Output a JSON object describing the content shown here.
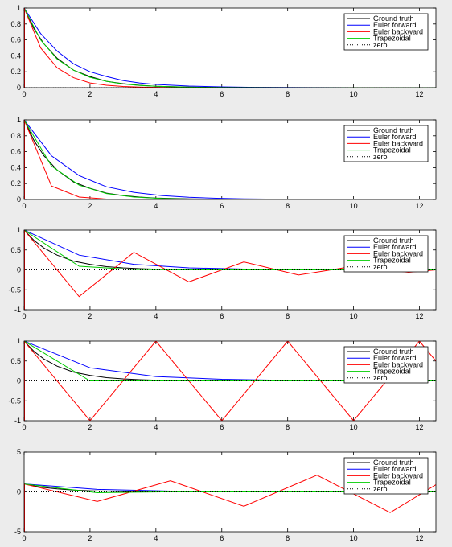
{
  "legend_entries": [
    "Ground truth",
    "Euler forward",
    "Euler backward",
    "Trapezoidal",
    "zero"
  ],
  "colors": {
    "ground_truth": "#000000",
    "euler_forward": "#0000ff",
    "euler_backward": "#ff0000",
    "trapezoidal": "#00cc00",
    "zero": "#000000"
  },
  "chart_data": [
    {
      "type": "line",
      "xlim": [
        0,
        12.5
      ],
      "ylim": [
        0,
        1
      ],
      "xticks": [
        0,
        2,
        4,
        6,
        8,
        10,
        12
      ],
      "yticks": [
        0,
        0.2,
        0.4,
        0.6,
        0.8,
        1
      ],
      "ytick_labels": [
        "0",
        "0.2",
        "0.4",
        "0.6",
        "0.8",
        "1"
      ],
      "legend_position": "top-right",
      "series": [
        {
          "name": "Ground truth",
          "color": "#000000",
          "x": [
            0,
            0.3,
            0.6,
            1,
            1.5,
            2,
            2.5,
            3,
            3.5,
            4,
            5,
            6,
            7,
            8,
            10,
            12.5
          ],
          "y": [
            1,
            0.74,
            0.55,
            0.37,
            0.22,
            0.14,
            0.08,
            0.05,
            0.03,
            0.018,
            0.007,
            0.002,
            0.001,
            0,
            0,
            0
          ]
        },
        {
          "name": "Euler forward",
          "color": "#0000ff",
          "x": [
            0,
            0.5,
            1,
            1.5,
            2,
            2.5,
            3,
            3.5,
            4,
            4.5,
            5,
            6,
            7,
            8,
            10,
            12.5
          ],
          "y": [
            1,
            0.68,
            0.46,
            0.3,
            0.2,
            0.14,
            0.09,
            0.06,
            0.04,
            0.03,
            0.02,
            0.01,
            0.004,
            0.002,
            0,
            0
          ]
        },
        {
          "name": "Euler backward",
          "color": "#ff0000",
          "x": [
            0,
            0.5,
            1,
            1.5,
            2,
            2.5,
            3,
            3.5,
            4,
            5,
            6,
            8,
            10,
            12.5
          ],
          "y": [
            1,
            0.5,
            0.25,
            0.125,
            0.06,
            0.03,
            0.015,
            0.008,
            0.004,
            0.001,
            0,
            0,
            0,
            0
          ]
        },
        {
          "name": "Trapezoidal",
          "color": "#00cc00",
          "x": [
            0,
            0.5,
            1,
            1.5,
            2,
            2.5,
            3,
            3.5,
            4,
            5,
            6,
            8,
            10,
            12.5
          ],
          "y": [
            1,
            0.6,
            0.36,
            0.22,
            0.13,
            0.08,
            0.046,
            0.028,
            0.017,
            0.006,
            0.002,
            0,
            0,
            0
          ]
        },
        {
          "name": "zero",
          "color": "#000000",
          "x": [
            0,
            12.5
          ],
          "y": [
            0,
            0
          ],
          "dotted": true
        }
      ]
    },
    {
      "type": "line",
      "xlim": [
        0,
        12.5
      ],
      "ylim": [
        0,
        1
      ],
      "xticks": [
        0,
        2,
        4,
        6,
        8,
        10,
        12
      ],
      "yticks": [
        0,
        0.2,
        0.4,
        0.6,
        0.8,
        1
      ],
      "ytick_labels": [
        "0",
        "0.2",
        "0.4",
        "0.6",
        "0.8",
        "1"
      ],
      "legend_position": "top-right",
      "series": [
        {
          "name": "Ground truth",
          "color": "#000000",
          "x": [
            0,
            0.3,
            0.6,
            1,
            1.5,
            2,
            2.5,
            3,
            3.5,
            4,
            5,
            6,
            7,
            8,
            10,
            12.5
          ],
          "y": [
            1,
            0.74,
            0.55,
            0.37,
            0.22,
            0.14,
            0.08,
            0.05,
            0.03,
            0.018,
            0.007,
            0.002,
            0.001,
            0,
            0,
            0
          ]
        },
        {
          "name": "Euler forward",
          "color": "#0000ff",
          "x": [
            0,
            0.83,
            1.67,
            2.5,
            3.33,
            4.17,
            5,
            5.83,
            6.67,
            8,
            10,
            12.5
          ],
          "y": [
            1,
            0.55,
            0.3,
            0.16,
            0.09,
            0.05,
            0.027,
            0.015,
            0.008,
            0.003,
            0,
            0
          ]
        },
        {
          "name": "Euler backward",
          "color": "#ff0000",
          "x": [
            0,
            0.83,
            1.67,
            2.5,
            3.33,
            4.17,
            5,
            6,
            8,
            10,
            12.5
          ],
          "y": [
            1,
            0.17,
            0.03,
            0.005,
            0,
            0,
            0,
            0,
            0,
            0,
            0
          ]
        },
        {
          "name": "Trapezoidal",
          "color": "#00cc00",
          "x": [
            0,
            0.83,
            1.67,
            2.5,
            3.33,
            4.17,
            5,
            5.83,
            6.67,
            8,
            10,
            12.5
          ],
          "y": [
            1,
            0.42,
            0.18,
            0.075,
            0.03,
            0.013,
            0.005,
            0.002,
            0.001,
            0,
            0,
            0
          ]
        },
        {
          "name": "zero",
          "color": "#000000",
          "x": [
            0,
            12.5
          ],
          "y": [
            0,
            0
          ],
          "dotted": true
        }
      ]
    },
    {
      "type": "line",
      "xlim": [
        0,
        12.5
      ],
      "ylim": [
        -1,
        1
      ],
      "xticks": [
        0,
        2,
        4,
        6,
        8,
        10,
        12
      ],
      "yticks": [
        -1,
        -0.5,
        0,
        0.5,
        1
      ],
      "ytick_labels": [
        "-1",
        "-0.5",
        "0",
        "0.5",
        "1"
      ],
      "legend_position": "top-right",
      "series": [
        {
          "name": "Ground truth",
          "color": "#000000",
          "x": [
            0,
            0.3,
            0.6,
            1,
            1.5,
            2,
            2.5,
            3,
            3.5,
            4,
            5,
            6,
            7,
            8,
            10,
            12.5
          ],
          "y": [
            1,
            0.74,
            0.55,
            0.37,
            0.22,
            0.14,
            0.08,
            0.05,
            0.03,
            0.018,
            0.007,
            0.002,
            0.001,
            0,
            0,
            0
          ]
        },
        {
          "name": "Euler forward",
          "color": "#0000ff",
          "x": [
            0,
            1.67,
            3.33,
            5,
            6.67,
            8.33,
            10,
            11.67,
            12.5
          ],
          "y": [
            1,
            0.37,
            0.14,
            0.05,
            0.02,
            0.007,
            0.003,
            0.001,
            0
          ]
        },
        {
          "name": "Euler backward",
          "color": "#ff0000",
          "x": [
            0,
            1.67,
            3.33,
            5,
            6.67,
            8.33,
            10,
            11.67,
            12.5
          ],
          "y": [
            1,
            -0.67,
            0.44,
            -0.3,
            0.2,
            -0.13,
            0.09,
            -0.06,
            0
          ]
        },
        {
          "name": "Trapezoidal",
          "color": "#00cc00",
          "x": [
            0,
            1.67,
            3.33,
            5,
            6.67,
            8.33,
            10,
            11.67,
            12.5
          ],
          "y": [
            1,
            0.09,
            0.008,
            0.001,
            0,
            0,
            0,
            0,
            0
          ]
        },
        {
          "name": "zero",
          "color": "#000000",
          "x": [
            0,
            12.5
          ],
          "y": [
            0,
            0
          ],
          "dotted": true
        }
      ]
    },
    {
      "type": "line",
      "xlim": [
        0,
        12.5
      ],
      "ylim": [
        -1,
        1
      ],
      "xticks": [
        0,
        2,
        4,
        6,
        8,
        10,
        12
      ],
      "yticks": [
        -1,
        -0.5,
        0,
        0.5,
        1
      ],
      "ytick_labels": [
        "-1",
        "-0.5",
        "0",
        "0.5",
        "1"
      ],
      "legend_position": "top-right",
      "series": [
        {
          "name": "Ground truth",
          "color": "#000000",
          "x": [
            0,
            0.3,
            0.6,
            1,
            1.5,
            2,
            2.5,
            3,
            3.5,
            4,
            5,
            6,
            7,
            8,
            10,
            12.5
          ],
          "y": [
            1,
            0.74,
            0.55,
            0.37,
            0.22,
            0.14,
            0.08,
            0.05,
            0.03,
            0.018,
            0.007,
            0.002,
            0.001,
            0,
            0,
            0
          ]
        },
        {
          "name": "Euler forward",
          "color": "#0000ff",
          "x": [
            0,
            2,
            4,
            6,
            8,
            10,
            12,
            12.5
          ],
          "y": [
            1,
            0.33,
            0.11,
            0.04,
            0.012,
            0.004,
            0.001,
            0
          ]
        },
        {
          "name": "Euler backward",
          "color": "#ff0000",
          "x": [
            0,
            2,
            4,
            6,
            8,
            10,
            12,
            12.5
          ],
          "y": [
            1,
            -1,
            1,
            -1,
            1,
            -1,
            1,
            0.5
          ]
        },
        {
          "name": "Trapezoidal",
          "color": "#00cc00",
          "x": [
            0,
            2,
            4,
            6,
            8,
            10,
            12,
            12.5
          ],
          "y": [
            1,
            0,
            0,
            0,
            0,
            0,
            0,
            0
          ]
        },
        {
          "name": "zero",
          "color": "#000000",
          "x": [
            0,
            12.5
          ],
          "y": [
            0,
            0
          ],
          "dotted": true
        }
      ]
    },
    {
      "type": "line",
      "xlim": [
        0,
        12.5
      ],
      "ylim": [
        -5,
        5
      ],
      "xticks": [
        0,
        2,
        4,
        6,
        8,
        10,
        12
      ],
      "yticks": [
        -5,
        0,
        5
      ],
      "ytick_labels": [
        "-5",
        "0",
        "5"
      ],
      "legend_position": "top-right",
      "series": [
        {
          "name": "Ground truth",
          "color": "#000000",
          "x": [
            0,
            0.5,
            1,
            1.5,
            2,
            3,
            4,
            5,
            6,
            8,
            10,
            12.5
          ],
          "y": [
            1,
            0.6,
            0.37,
            0.22,
            0.14,
            0.05,
            0.018,
            0.007,
            0.002,
            0,
            0,
            0
          ]
        },
        {
          "name": "Euler forward",
          "color": "#0000ff",
          "x": [
            0,
            2.22,
            4.44,
            6.67,
            8.89,
            11.11,
            12.5
          ],
          "y": [
            1,
            0.31,
            0.1,
            0.03,
            0.01,
            0.003,
            0
          ]
        },
        {
          "name": "Euler backward",
          "color": "#ff0000",
          "x": [
            0,
            2.22,
            4.44,
            6.67,
            8.89,
            11.11,
            12.5
          ],
          "y": [
            1,
            -1.2,
            1.4,
            -1.8,
            2.1,
            -2.6,
            0.9
          ]
        },
        {
          "name": "Trapezoidal",
          "color": "#00cc00",
          "x": [
            0,
            2.22,
            4.44,
            6.67,
            8.89,
            11.11,
            12.5
          ],
          "y": [
            1,
            -0.1,
            0.01,
            0,
            0,
            0,
            0
          ]
        },
        {
          "name": "zero",
          "color": "#000000",
          "x": [
            0,
            12.5
          ],
          "y": [
            0,
            0
          ],
          "dotted": true
        }
      ]
    }
  ]
}
